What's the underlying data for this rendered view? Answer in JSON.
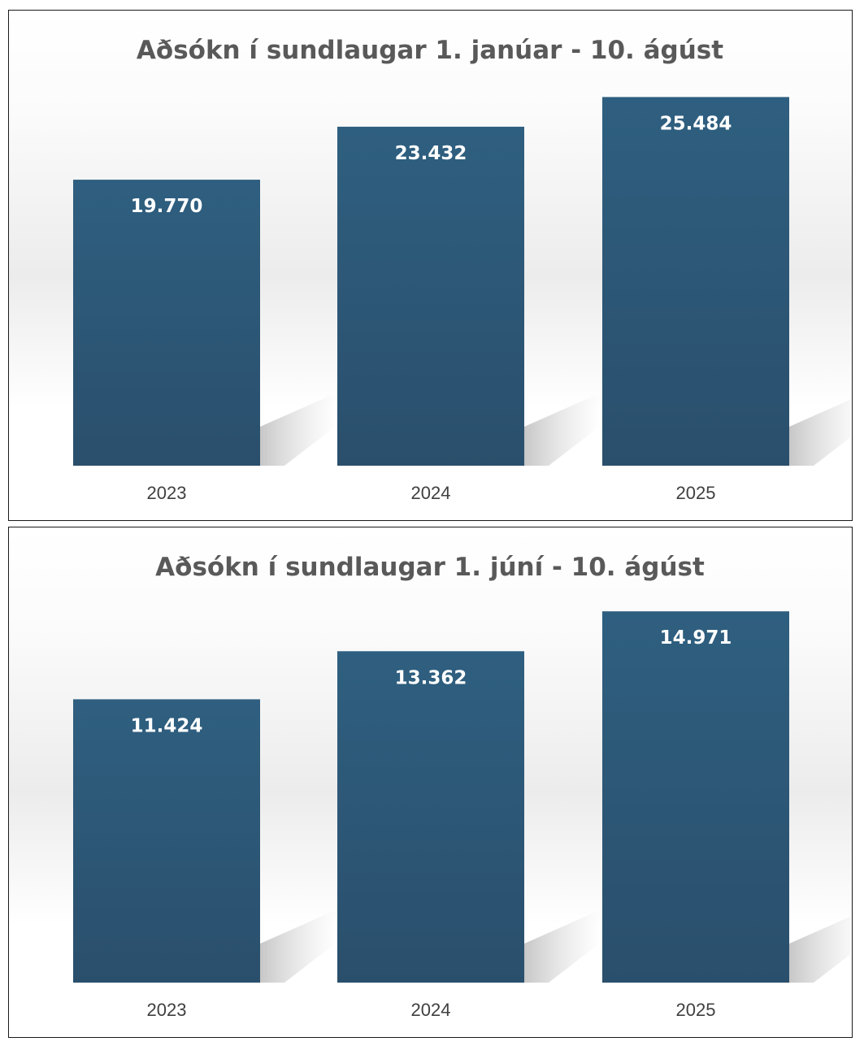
{
  "chart_data": [
    {
      "type": "bar",
      "title": "Aðsókn í sundlaugar 1. janúar - 10. ágúst",
      "categories": [
        "2023",
        "2024",
        "2025"
      ],
      "values": [
        19770,
        23432,
        25484
      ],
      "value_labels": [
        "19.770",
        "23.432",
        "25.484"
      ],
      "ylim": [
        0,
        30000
      ],
      "grid": false,
      "legend": "none",
      "bar_color": "#2f5b7c"
    },
    {
      "type": "bar",
      "title": "Aðsókn í sundlaugar 1. júní - 10. ágúst",
      "categories": [
        "2023",
        "2024",
        "2025"
      ],
      "values": [
        11424,
        13362,
        14971
      ],
      "value_labels": [
        "11.424",
        "13.362",
        "14.971"
      ],
      "ylim": [
        0,
        17500
      ],
      "grid": false,
      "legend": "none",
      "bar_color": "#2f5b7c"
    }
  ]
}
